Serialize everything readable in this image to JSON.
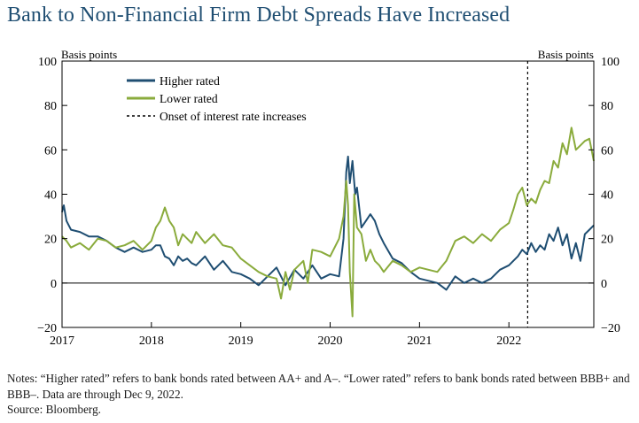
{
  "title": "Bank to Non-Financial Firm Debt Spreads Have Increased",
  "notes": {
    "line1": "Notes: “Higher rated” refers to bank bonds rated between AA+ and A–. “Lower rated” refers to bank bonds rated between BBB+ and BBB–. Data are through Dec 9, 2022.",
    "source": "Source: Bloomberg."
  },
  "colors": {
    "higher": "#1f4e72",
    "lower": "#8aab3c",
    "title": "#1f4e72"
  },
  "chart_data": {
    "type": "line",
    "ylabel_left": "Basis points",
    "ylabel_right": "Basis points",
    "ylim": [
      -20,
      100
    ],
    "yticks": [
      100,
      80,
      60,
      40,
      20,
      0,
      -20
    ],
    "ytick_labels": [
      "100",
      "80",
      "60",
      "40",
      "20",
      "0",
      "−20"
    ],
    "xlim": [
      2017.0,
      2022.95
    ],
    "xticks": [
      2017,
      2018,
      2019,
      2020,
      2021,
      2022
    ],
    "xtick_labels": [
      "2017",
      "2018",
      "2019",
      "2020",
      "2021",
      "2022"
    ],
    "legend": {
      "position": "top-left",
      "entries": [
        "Higher rated",
        "Lower rated",
        "Onset of interest rate increases"
      ]
    },
    "event_line": {
      "x": 2022.21,
      "label": "Onset of interest rate increases"
    },
    "series": [
      {
        "name": "Higher rated",
        "x": [
          2017.0,
          2017.02,
          2017.05,
          2017.1,
          2017.2,
          2017.3,
          2017.4,
          2017.5,
          2017.6,
          2017.7,
          2017.8,
          2017.9,
          2018.0,
          2018.05,
          2018.1,
          2018.15,
          2018.2,
          2018.25,
          2018.3,
          2018.35,
          2018.4,
          2018.45,
          2018.5,
          2018.6,
          2018.7,
          2018.8,
          2018.9,
          2019.0,
          2019.1,
          2019.2,
          2019.3,
          2019.4,
          2019.5,
          2019.6,
          2019.7,
          2019.8,
          2019.9,
          2020.0,
          2020.1,
          2020.15,
          2020.18,
          2020.2,
          2020.22,
          2020.25,
          2020.28,
          2020.3,
          2020.35,
          2020.4,
          2020.45,
          2020.5,
          2020.55,
          2020.6,
          2020.7,
          2020.8,
          2020.9,
          2021.0,
          2021.1,
          2021.2,
          2021.3,
          2021.4,
          2021.5,
          2021.6,
          2021.7,
          2021.8,
          2021.9,
          2022.0,
          2022.1,
          2022.15,
          2022.2,
          2022.25,
          2022.3,
          2022.35,
          2022.4,
          2022.45,
          2022.5,
          2022.55,
          2022.6,
          2022.65,
          2022.7,
          2022.75,
          2022.8,
          2022.85,
          2022.9,
          2022.95
        ],
        "values": [
          32,
          35,
          28,
          24,
          23,
          21,
          21,
          19,
          16,
          14,
          16,
          14,
          15,
          17,
          17,
          12,
          11,
          8,
          12,
          10,
          11,
          9,
          8,
          12,
          6,
          10,
          5,
          4,
          2,
          -1,
          3,
          7,
          -1,
          6,
          2,
          8,
          2,
          4,
          3,
          20,
          50,
          57,
          45,
          55,
          40,
          43,
          25,
          28,
          31,
          28,
          22,
          18,
          11,
          9,
          5,
          2,
          1,
          0,
          -3,
          3,
          0,
          2,
          0,
          2,
          6,
          8,
          12,
          15,
          13,
          18,
          14,
          17,
          15,
          22,
          19,
          25,
          17,
          22,
          11,
          18,
          10,
          22,
          24,
          26
        ]
      },
      {
        "name": "Lower rated",
        "x": [
          2017.0,
          2017.05,
          2017.1,
          2017.2,
          2017.3,
          2017.4,
          2017.5,
          2017.6,
          2017.7,
          2017.8,
          2017.9,
          2018.0,
          2018.05,
          2018.1,
          2018.15,
          2018.2,
          2018.25,
          2018.3,
          2018.35,
          2018.4,
          2018.45,
          2018.5,
          2018.6,
          2018.7,
          2018.8,
          2018.9,
          2019.0,
          2019.1,
          2019.2,
          2019.3,
          2019.4,
          2019.45,
          2019.5,
          2019.55,
          2019.6,
          2019.7,
          2019.75,
          2019.8,
          2019.9,
          2020.0,
          2020.1,
          2020.15,
          2020.18,
          2020.2,
          2020.22,
          2020.25,
          2020.27,
          2020.3,
          2020.35,
          2020.4,
          2020.45,
          2020.5,
          2020.55,
          2020.6,
          2020.7,
          2020.8,
          2020.9,
          2021.0,
          2021.1,
          2021.2,
          2021.3,
          2021.4,
          2021.5,
          2021.6,
          2021.7,
          2021.8,
          2021.9,
          2022.0,
          2022.05,
          2022.1,
          2022.15,
          2022.2,
          2022.25,
          2022.3,
          2022.35,
          2022.4,
          2022.45,
          2022.5,
          2022.55,
          2022.6,
          2022.65,
          2022.7,
          2022.75,
          2022.8,
          2022.85,
          2022.9,
          2022.95
        ],
        "values": [
          21,
          19,
          16,
          18,
          15,
          20,
          19,
          16,
          17,
          19,
          15,
          19,
          25,
          28,
          34,
          28,
          25,
          17,
          22,
          20,
          18,
          23,
          18,
          22,
          17,
          16,
          11,
          8,
          5,
          3,
          2,
          -7,
          5,
          -3,
          6,
          10,
          0,
          15,
          14,
          12,
          20,
          30,
          46,
          35,
          5,
          -15,
          40,
          25,
          22,
          10,
          15,
          10,
          8,
          5,
          10,
          8,
          5,
          7,
          6,
          5,
          10,
          19,
          21,
          18,
          22,
          19,
          24,
          27,
          33,
          40,
          43,
          35,
          38,
          36,
          42,
          46,
          45,
          55,
          52,
          63,
          58,
          70,
          60,
          62,
          64,
          65,
          55
        ]
      }
    ]
  }
}
